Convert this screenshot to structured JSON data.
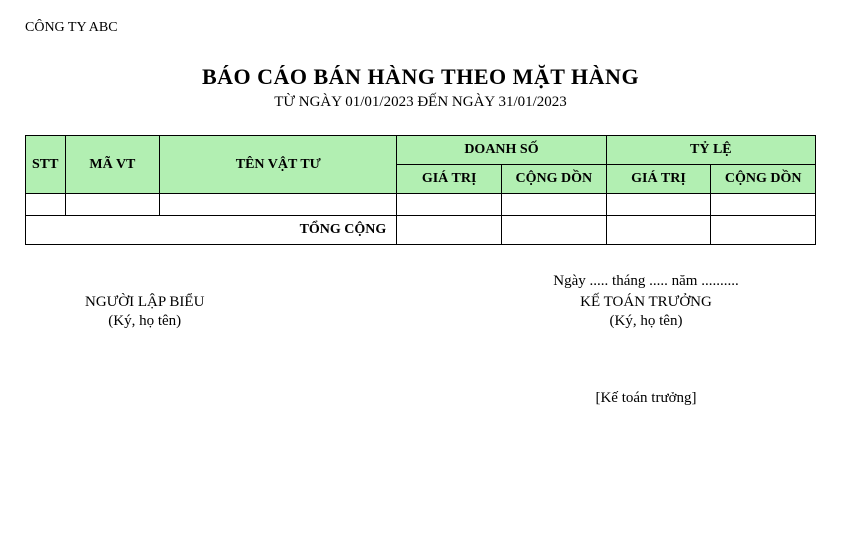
{
  "company_name": "CÔNG TY ABC",
  "report": {
    "title": "BÁO CÁO BÁN HÀNG THEO MẶT HÀNG",
    "subtitle": "TỪ NGÀY 01/01/2023 ĐẾN NGÀY 31/01/2023"
  },
  "table": {
    "header_bg": "#b2efb2",
    "border_color": "#000000",
    "columns": {
      "stt": "STT",
      "ma_vt": "MÃ VT",
      "ten_vat_tu": "TÊN VẬT TƯ",
      "doanh_so": "DOANH SỐ",
      "ty_le": "TỶ LỆ",
      "gia_tri": "GIÁ TRỊ",
      "cong_don": "CỘNG DỒN"
    },
    "total_label": "TỔNG CỘNG",
    "rows": [
      {
        "stt": "",
        "ma_vt": "",
        "ten_vat_tu": "",
        "ds_gia_tri": "",
        "ds_cong_don": "",
        "tl_gia_tri": "",
        "tl_cong_don": ""
      }
    ],
    "totals": {
      "ds_gia_tri": "",
      "ds_cong_don": "",
      "tl_gia_tri": "",
      "tl_cong_don": ""
    }
  },
  "signatures": {
    "date_line": "Ngày ..... tháng ..... năm ..........",
    "left": {
      "role": "NGƯỜI LẬP BIỂU",
      "note": "(Ký, họ tên)",
      "name": ""
    },
    "right": {
      "role": "KẾ TOÁN TRƯỞNG",
      "note": "(Ký, họ tên)",
      "name": "[Kế toán trưởng]"
    }
  },
  "styling": {
    "background_color": "#ffffff",
    "text_color": "#000000",
    "title_fontsize": 22,
    "subtitle_fontsize": 15,
    "body_fontsize": 14,
    "font_family": "Times New Roman"
  }
}
